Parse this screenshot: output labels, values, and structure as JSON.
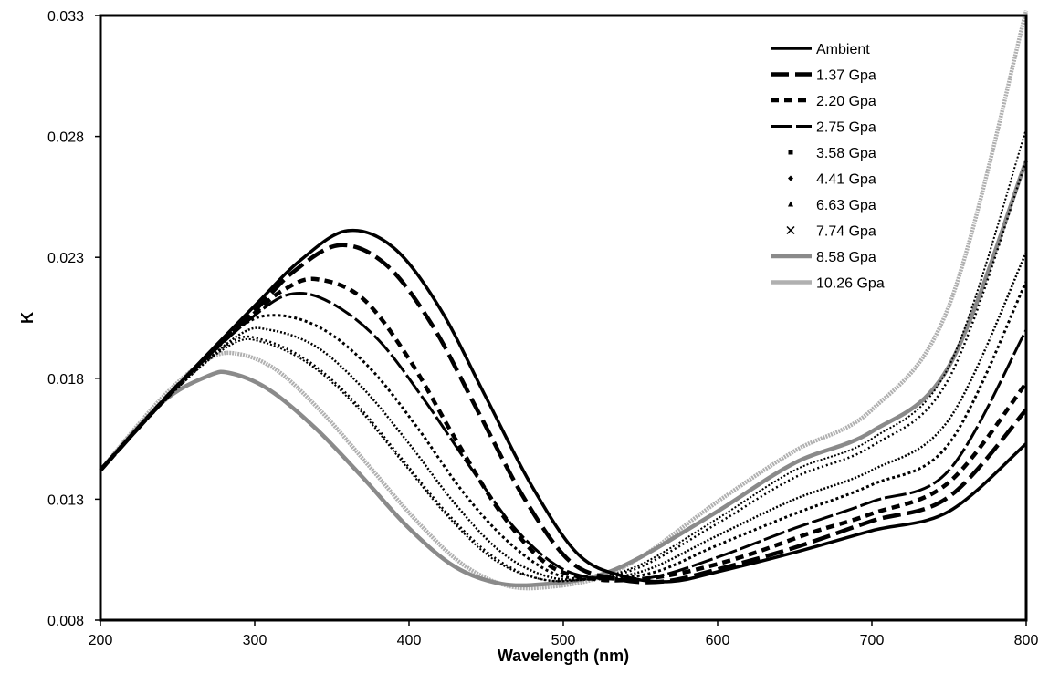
{
  "chart_data": {
    "type": "line",
    "title": "",
    "xlabel": "Wavelength (nm)",
    "ylabel": "K",
    "xlim": [
      200,
      800
    ],
    "ylim": [
      0.008,
      0.033
    ],
    "xticks": [
      200,
      300,
      400,
      500,
      600,
      700,
      800
    ],
    "yticks": [
      "0.008",
      "0.013",
      "0.018",
      "0.023",
      "0.028",
      "0.033"
    ],
    "grid": false,
    "legend_position": "top-right",
    "series": [
      {
        "name": "Ambient",
        "color": "#000000",
        "style": "solid",
        "x": [
          200,
          250,
          300,
          330,
          360,
          390,
          420,
          450,
          480,
          510,
          540,
          570,
          600,
          650,
          700,
          750,
          800
        ],
        "y": [
          0.0142,
          0.0177,
          0.021,
          0.0229,
          0.0241,
          0.0234,
          0.0209,
          0.0172,
          0.0135,
          0.0107,
          0.0098,
          0.0096,
          0.01,
          0.0108,
          0.0117,
          0.0125,
          0.0153
        ]
      },
      {
        "name": "1.37 Gpa",
        "color": "#000000",
        "style": "longdash",
        "x": [
          200,
          250,
          300,
          325,
          355,
          385,
          415,
          445,
          475,
          505,
          535,
          565,
          600,
          650,
          700,
          750,
          800
        ],
        "y": [
          0.0142,
          0.0177,
          0.0208,
          0.0224,
          0.0235,
          0.0227,
          0.0202,
          0.0166,
          0.013,
          0.0104,
          0.0097,
          0.0096,
          0.0101,
          0.011,
          0.0121,
          0.0131,
          0.0167
        ]
      },
      {
        "name": "2.20 Gpa",
        "color": "#000000",
        "style": "dash",
        "x": [
          200,
          250,
          300,
          320,
          340,
          370,
          400,
          430,
          460,
          490,
          520,
          550,
          580,
          620,
          660,
          700,
          750,
          800
        ],
        "y": [
          0.0142,
          0.0177,
          0.0207,
          0.0217,
          0.0221,
          0.0213,
          0.0188,
          0.0155,
          0.0124,
          0.0103,
          0.0097,
          0.0097,
          0.01,
          0.0107,
          0.0116,
          0.0124,
          0.0137,
          0.0178
        ]
      },
      {
        "name": "2.75 Gpa",
        "color": "#000000",
        "style": "longdash2",
        "x": [
          200,
          250,
          300,
          325,
          350,
          380,
          410,
          440,
          470,
          500,
          530,
          560,
          600,
          650,
          700,
          750,
          800
        ],
        "y": [
          0.0142,
          0.0177,
          0.0206,
          0.0215,
          0.0211,
          0.0196,
          0.0171,
          0.0143,
          0.0117,
          0.0101,
          0.0097,
          0.0098,
          0.0106,
          0.0118,
          0.0129,
          0.0142,
          0.02
        ]
      },
      {
        "name": "3.58 Gpa",
        "color": "#000000",
        "style": "dotsquare",
        "x": [
          200,
          250,
          290,
          315,
          345,
          375,
          405,
          435,
          465,
          495,
          525,
          560,
          600,
          650,
          700,
          750,
          800
        ],
        "y": [
          0.0142,
          0.0177,
          0.0201,
          0.0206,
          0.02,
          0.0184,
          0.016,
          0.0133,
          0.0112,
          0.0099,
          0.0097,
          0.01,
          0.0111,
          0.0124,
          0.0136,
          0.0153,
          0.022
        ]
      },
      {
        "name": "4.41 Gpa",
        "color": "#000000",
        "style": "dotdiamond",
        "x": [
          200,
          250,
          290,
          310,
          340,
          370,
          400,
          430,
          460,
          490,
          520,
          555,
          600,
          650,
          700,
          750,
          800
        ],
        "y": [
          0.0142,
          0.0176,
          0.0198,
          0.02,
          0.0193,
          0.0176,
          0.0153,
          0.0128,
          0.0108,
          0.0098,
          0.0097,
          0.0101,
          0.0115,
          0.013,
          0.0142,
          0.0163,
          0.0232
        ]
      },
      {
        "name": "6.63 Gpa",
        "color": "#000000",
        "style": "dottriangle",
        "x": [
          200,
          250,
          285,
          305,
          335,
          365,
          395,
          425,
          455,
          485,
          515,
          550,
          600,
          650,
          700,
          750,
          800
        ],
        "y": [
          0.0142,
          0.0176,
          0.0195,
          0.0196,
          0.0187,
          0.017,
          0.0147,
          0.0124,
          0.0106,
          0.0097,
          0.0097,
          0.0102,
          0.012,
          0.0139,
          0.0152,
          0.018,
          0.027
        ]
      },
      {
        "name": "7.74 Gpa",
        "color": "#000000",
        "style": "cross",
        "x": [
          200,
          250,
          285,
          305,
          335,
          365,
          395,
          425,
          455,
          485,
          515,
          550,
          600,
          650,
          700,
          750,
          800
        ],
        "y": [
          0.0142,
          0.0176,
          0.0194,
          0.0195,
          0.0186,
          0.0169,
          0.0146,
          0.0123,
          0.0105,
          0.0097,
          0.0097,
          0.0103,
          0.0122,
          0.0142,
          0.0155,
          0.0185,
          0.0283
        ]
      },
      {
        "name": "8.58 Gpa",
        "color": "#8a8a8a",
        "style": "thickgray",
        "x": [
          200,
          240,
          270,
          285,
          310,
          340,
          370,
          400,
          430,
          460,
          490,
          520,
          550,
          600,
          650,
          700,
          750,
          800
        ],
        "y": [
          0.0142,
          0.017,
          0.0181,
          0.0182,
          0.0175,
          0.0159,
          0.0139,
          0.0118,
          0.0102,
          0.0095,
          0.0095,
          0.0098,
          0.0106,
          0.0125,
          0.0145,
          0.0158,
          0.0185,
          0.027
        ]
      },
      {
        "name": "10.26 Gpa",
        "color": "#b0b0b0",
        "style": "lightgray",
        "x": [
          200,
          240,
          270,
          290,
          315,
          345,
          375,
          405,
          435,
          465,
          495,
          525,
          555,
          600,
          650,
          700,
          750,
          800
        ],
        "y": [
          0.0142,
          0.0172,
          0.0188,
          0.019,
          0.0183,
          0.0165,
          0.0143,
          0.0121,
          0.0103,
          0.0094,
          0.0094,
          0.0098,
          0.0108,
          0.0129,
          0.015,
          0.0167,
          0.021,
          0.0332
        ]
      }
    ]
  }
}
